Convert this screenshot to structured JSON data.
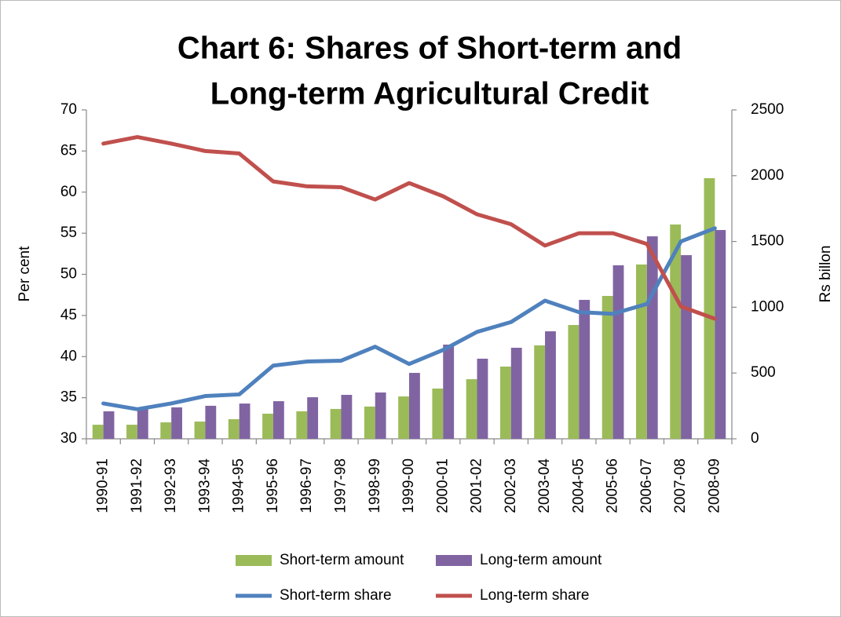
{
  "chart_data": {
    "type": "bar",
    "title": [
      "Chart 6: Shares of Short-term and",
      "Long-term Agricultural Credit"
    ],
    "y_label": "Per cent",
    "y2_label": "Rs billon",
    "categories": [
      "1990-91",
      "1991-92",
      "1992-93",
      "1993-94",
      "1994-95",
      "1995-96",
      "1996-97",
      "1997-98",
      "1998-99",
      "1999-00",
      "2000-01",
      "2001-02",
      "2002-03",
      "2003-04",
      "2004-05",
      "2005-06",
      "2006-07",
      "2007-08",
      "2008-09"
    ],
    "ylim": [
      30,
      70
    ],
    "yticks": [
      30,
      35,
      40,
      45,
      50,
      55,
      60,
      65,
      70
    ],
    "y2lim": [
      0,
      2500
    ],
    "y2ticks": [
      0,
      500,
      1000,
      1500,
      2000,
      2500
    ],
    "series": [
      {
        "name": "Short-term amount",
        "type": "bar",
        "axis": "y2",
        "color": "#9bbb59",
        "values": [
          107,
          107,
          125,
          131,
          149,
          191,
          209,
          227,
          245,
          322,
          382,
          453,
          549,
          710,
          865,
          1086,
          1325,
          1629,
          1981
        ]
      },
      {
        "name": "Long-term amount",
        "type": "bar",
        "axis": "y2",
        "color": "#8064a2",
        "values": [
          209,
          239,
          239,
          251,
          268,
          286,
          316,
          334,
          352,
          501,
          716,
          609,
          692,
          817,
          1056,
          1319,
          1539,
          1396,
          1587
        ]
      },
      {
        "name": "Short-term share",
        "type": "line",
        "axis": "y",
        "color": "#4f81bd",
        "values": [
          34.3,
          33.6,
          34.3,
          35.2,
          35.4,
          38.9,
          39.4,
          39.5,
          41.2,
          39.1,
          40.8,
          43.0,
          44.2,
          46.8,
          45.4,
          45.2,
          46.4,
          54.0,
          55.6
        ]
      },
      {
        "name": "Long-term share",
        "type": "line",
        "axis": "y",
        "color": "#c0504d",
        "values": [
          65.9,
          66.7,
          65.9,
          65.0,
          64.7,
          61.3,
          60.7,
          60.6,
          59.1,
          61.1,
          59.5,
          57.3,
          56.1,
          53.5,
          55.0,
          55.0,
          53.7,
          46.1,
          44.6
        ]
      }
    ]
  }
}
